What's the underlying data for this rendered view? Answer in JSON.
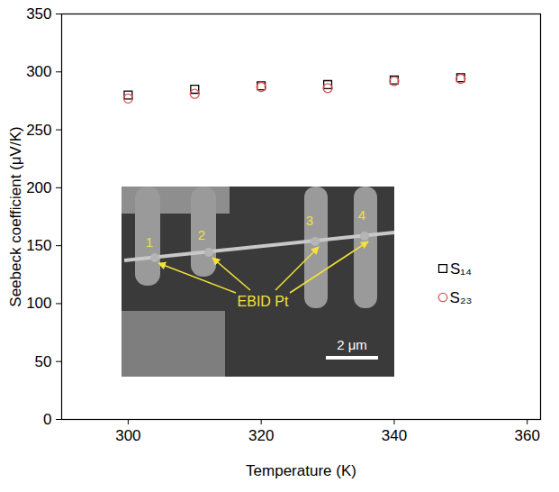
{
  "chart_data": {
    "type": "scatter",
    "x_label": "Temperature (K)",
    "y_label": "Seebeck coefficient (μV/K)",
    "x": [
      300,
      310,
      320,
      330,
      340,
      350
    ],
    "series": [
      {
        "name": "S₁₄",
        "color": "#000000",
        "marker": "square",
        "values": [
          280,
          285,
          288,
          289,
          293,
          295
        ]
      },
      {
        "name": "S₂₃",
        "color": "#e05050",
        "marker": "circle",
        "values": [
          277,
          281,
          287,
          286,
          292,
          294
        ]
      }
    ],
    "xlim": [
      290,
      362
    ],
    "xticks": [
      300,
      320,
      340,
      360
    ],
    "ylim": [
      0,
      350
    ],
    "yticks": [
      0,
      50,
      100,
      150,
      200,
      250,
      300,
      350
    ],
    "grid": false,
    "legend": "right",
    "annotations": [
      "1",
      "2",
      "3",
      "4",
      "EBID Pt",
      "2 μm"
    ]
  }
}
